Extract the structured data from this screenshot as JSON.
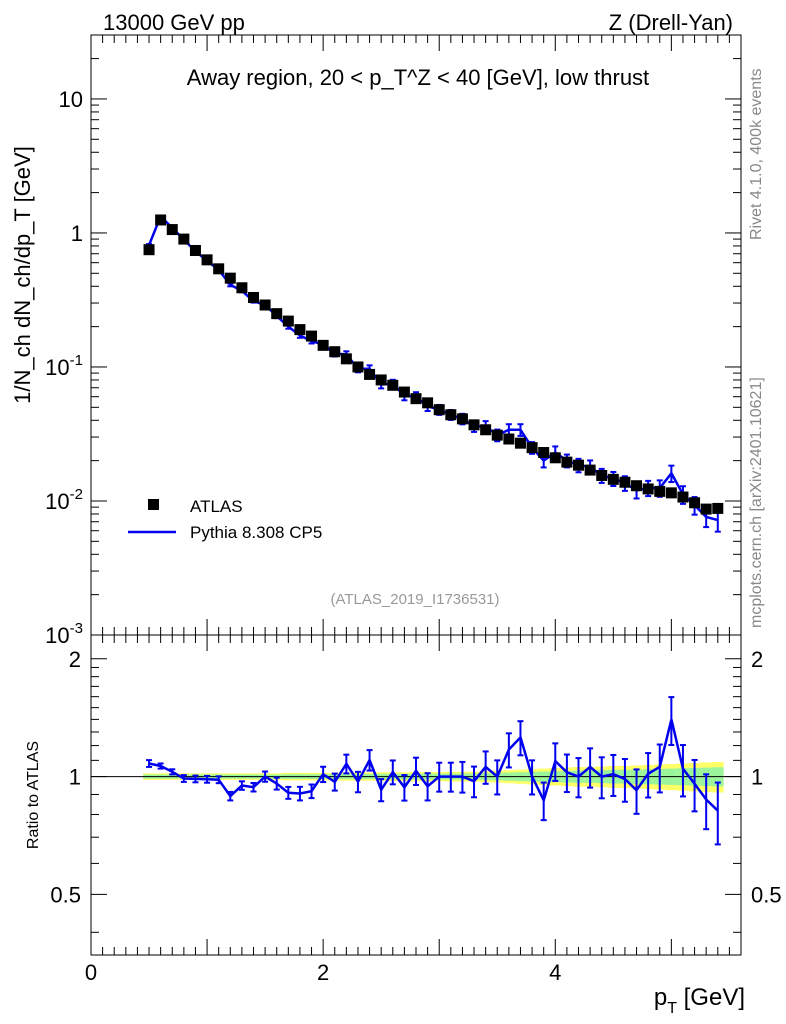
{
  "header": {
    "left": "13000 GeV pp",
    "right": "Z (Drell-Yan)"
  },
  "side_labels": {
    "rivet": "Rivet 4.1.0,  400k events",
    "mcplots": "mcplots.cern.ch [arXiv:2401.10621]"
  },
  "chart_data": {
    "type": "line",
    "title": "Away region, 20 < p_T^Z < 40 [GeV], low thrust",
    "analysis_id": "(ATLAS_2019_I1736531)",
    "xlabel": "p_T [GeV]",
    "ylabel": "1/N_ch dN_ch/dp_T [GeV]",
    "ratio_ylabel": "Ratio to ATLAS",
    "xlim": [
      0,
      5.6
    ],
    "ylim": [
      0.001,
      30
    ],
    "ylog": true,
    "ratio_ylim": [
      0.35,
      2.3
    ],
    "x_ticks": [
      "0",
      "2",
      "4"
    ],
    "y_ticks": [
      "10^-3",
      "10^-2",
      "10^-1",
      "1",
      "10"
    ],
    "ratio_ticks": [
      "0.5",
      "1",
      "2"
    ],
    "legend": [
      {
        "name": "ATLAS",
        "style": "marker",
        "color": "#000000"
      },
      {
        "name": "Pythia 8.308 CP5",
        "style": "line",
        "color": "#0000ee"
      }
    ],
    "x": [
      0.5,
      0.6,
      0.7,
      0.8,
      0.9,
      1.0,
      1.1,
      1.2,
      1.3,
      1.4,
      1.5,
      1.6,
      1.7,
      1.8,
      1.9,
      2.0,
      2.1,
      2.2,
      2.3,
      2.4,
      2.5,
      2.6,
      2.7,
      2.8,
      2.9,
      3.0,
      3.1,
      3.2,
      3.3,
      3.4,
      3.5,
      3.6,
      3.7,
      3.8,
      3.9,
      4.0,
      4.1,
      4.2,
      4.3,
      4.4,
      4.5,
      4.6,
      4.7,
      4.8,
      4.9,
      5.0,
      5.1,
      5.2,
      5.3,
      5.4
    ],
    "series": [
      {
        "name": "ATLAS",
        "values": [
          0.75,
          1.25,
          1.06,
          0.9,
          0.74,
          0.63,
          0.54,
          0.46,
          0.39,
          0.33,
          0.29,
          0.25,
          0.22,
          0.19,
          0.17,
          0.145,
          0.13,
          0.115,
          0.1,
          0.088,
          0.08,
          0.073,
          0.065,
          0.058,
          0.054,
          0.048,
          0.044,
          0.041,
          0.037,
          0.034,
          0.031,
          0.029,
          0.027,
          0.025,
          0.023,
          0.021,
          0.0195,
          0.0185,
          0.017,
          0.0155,
          0.0145,
          0.0138,
          0.013,
          0.0123,
          0.0118,
          0.0115,
          0.0107,
          0.0097,
          0.0087,
          0.0088
        ],
        "band_rel": [
          0.012,
          0.012,
          0.012,
          0.012,
          0.012,
          0.012,
          0.012,
          0.012,
          0.012,
          0.012,
          0.012,
          0.012,
          0.014,
          0.014,
          0.014,
          0.014,
          0.014,
          0.015,
          0.015,
          0.015,
          0.016,
          0.016,
          0.016,
          0.017,
          0.017,
          0.017,
          0.018,
          0.018,
          0.018,
          0.02,
          0.022,
          0.024,
          0.026,
          0.028,
          0.03,
          0.032,
          0.034,
          0.036,
          0.036,
          0.038,
          0.04,
          0.04,
          0.042,
          0.044,
          0.046,
          0.048,
          0.05,
          0.052,
          0.054,
          0.056
        ]
      },
      {
        "name": "Pythia 8.308 CP5",
        "values": [
          0.81,
          1.33,
          1.09,
          0.89,
          0.73,
          0.62,
          0.53,
          0.41,
          0.37,
          0.31,
          0.29,
          0.24,
          0.2,
          0.172,
          0.156,
          0.147,
          0.126,
          0.124,
          0.097,
          0.097,
          0.074,
          0.075,
          0.061,
          0.06,
          0.051,
          0.048,
          0.044,
          0.041,
          0.036,
          0.036,
          0.031,
          0.034,
          0.034,
          0.025,
          0.02,
          0.023,
          0.02,
          0.0185,
          0.018,
          0.0155,
          0.0147,
          0.0136,
          0.012,
          0.0125,
          0.0125,
          0.0161,
          0.0112,
          0.0093,
          0.0076,
          0.0072
        ],
        "errors": [
          0.02,
          0.015,
          0.015,
          0.02,
          0.02,
          0.02,
          0.02,
          0.025,
          0.025,
          0.025,
          0.03,
          0.035,
          0.035,
          0.04,
          0.04,
          0.045,
          0.05,
          0.055,
          0.06,
          0.06,
          0.065,
          0.07,
          0.075,
          0.08,
          0.08,
          0.085,
          0.085,
          0.09,
          0.09,
          0.095,
          0.1,
          0.1,
          0.1,
          0.1,
          0.11,
          0.11,
          0.11,
          0.115,
          0.115,
          0.12,
          0.12,
          0.125,
          0.13,
          0.13,
          0.14,
          0.14,
          0.15,
          0.15,
          0.16,
          0.18
        ]
      }
    ]
  }
}
